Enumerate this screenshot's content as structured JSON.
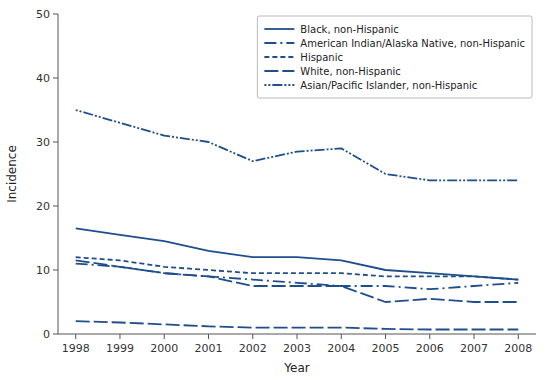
{
  "chart_data": {
    "type": "line",
    "xlabel": "Year",
    "ylabel": "Incidence",
    "x": [
      1998,
      1999,
      2000,
      2001,
      2002,
      2003,
      2004,
      2005,
      2006,
      2007,
      2008
    ],
    "xlim": [
      1997.6,
      2008.4
    ],
    "xticks": [
      1998,
      1999,
      2000,
      2001,
      2002,
      2003,
      2004,
      2005,
      2006,
      2007,
      2008
    ],
    "ylim": [
      0,
      50
    ],
    "yticks": [
      0,
      10,
      20,
      30,
      40,
      50
    ],
    "grid": false,
    "legend": "upper right",
    "series": [
      {
        "name": "Black, non-Hispanic",
        "color": "#1f4e8c",
        "line_style": "solid",
        "values": [
          16.5,
          15.5,
          14.5,
          13.0,
          12.0,
          12.0,
          11.5,
          10.0,
          9.5,
          9.0,
          8.5
        ]
      },
      {
        "name": "American Indian/Alaska Native, non-Hispanic",
        "color": "#1f4e8c",
        "line_style": "dashdot",
        "values": [
          11.0,
          10.5,
          9.5,
          9.0,
          8.5,
          8.0,
          7.5,
          7.5,
          7.0,
          7.5,
          8.0
        ]
      },
      {
        "name": "Hispanic",
        "color": "#1f4e8c",
        "line_style": "dashed",
        "values": [
          12.0,
          11.5,
          10.5,
          10.0,
          9.5,
          9.5,
          9.5,
          9.0,
          9.0,
          9.0,
          8.5
        ]
      },
      {
        "name": "White, non-Hispanic",
        "color": "#1f4e8c",
        "line_style": "longdash",
        "values": [
          11.5,
          10.5,
          9.5,
          9.0,
          7.5,
          7.5,
          7.5,
          5.0,
          5.5,
          5.0,
          5.0
        ]
      },
      {
        "name": "Asian/Pacific Islander, non-Hispanic",
        "color": "#1f4e8c",
        "line_style": "dashdotdot",
        "values": [
          35.0,
          33.0,
          31.0,
          30.0,
          27.0,
          28.5,
          29.0,
          25.0,
          24.0,
          24.0,
          24.0
        ]
      },
      {
        "color": "#1f4e8c",
        "line_style": "longdash",
        "values": [
          2.0,
          1.8,
          1.5,
          1.2,
          1.0,
          1.0,
          1.0,
          0.8,
          0.7,
          0.7,
          0.7
        ]
      }
    ]
  }
}
